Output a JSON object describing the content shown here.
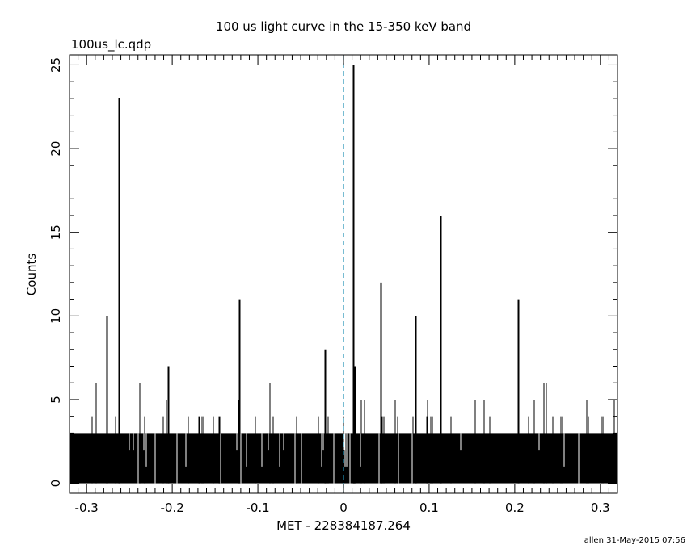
{
  "chart_data": {
    "type": "bar",
    "title": "100 us light curve in the 15-350 keV band",
    "subtitle": "100us_lc.qdp",
    "xlabel": "MET - 228384187.264",
    "ylabel": "Counts",
    "footer": "allen 31-May-2015 07:56",
    "xlim": [
      -0.32,
      0.32
    ],
    "ylim": [
      -0.6,
      25.6
    ],
    "x_ticks": [
      -0.3,
      -0.2,
      -0.1,
      0,
      0.1,
      0.2,
      0.3
    ],
    "x_tick_labels": [
      "-0.3",
      "-0.2",
      "-0.1",
      "0",
      "0.1",
      "0.2",
      "0.3"
    ],
    "y_ticks": [
      0,
      5,
      10,
      15,
      20,
      25
    ],
    "y_tick_labels": [
      "0",
      "5",
      "10",
      "15",
      "20",
      "25"
    ],
    "trigger_line_x": 0,
    "bin_width": 0.0001,
    "baseline_level": 3,
    "spikes": [
      {
        "x": -0.277,
        "y": 10
      },
      {
        "x": -0.262,
        "y": 23
      },
      {
        "x": -0.205,
        "y": 7
      },
      {
        "x": -0.122,
        "y": 11
      },
      {
        "x": -0.022,
        "y": 8
      },
      {
        "x": 0.011,
        "y": 25
      },
      {
        "x": 0.013,
        "y": 7
      },
      {
        "x": 0.043,
        "y": 12
      },
      {
        "x": 0.084,
        "y": 10
      },
      {
        "x": 0.113,
        "y": 16
      },
      {
        "x": 0.204,
        "y": 11
      }
    ],
    "grid": false,
    "colors": {
      "data": "#000000",
      "trigger_line": "#1f8fb4"
    }
  }
}
